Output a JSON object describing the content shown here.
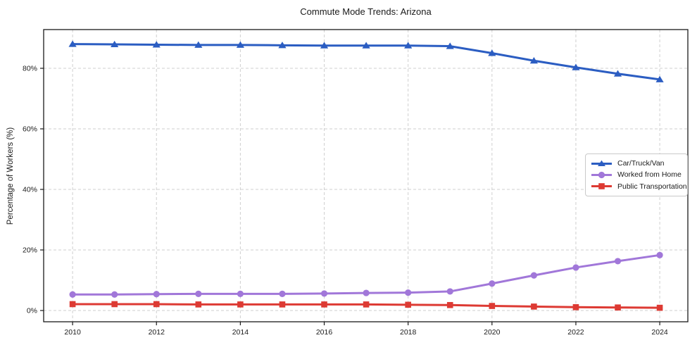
{
  "title": "Commute Mode Trends: Arizona",
  "chart_data": {
    "type": "line",
    "title": "Commute Mode Trends: Arizona",
    "xlabel": "",
    "ylabel": "Percentage of Workers (%)",
    "x": [
      2010,
      2011,
      2012,
      2013,
      2014,
      2015,
      2016,
      2017,
      2018,
      2019,
      2020,
      2021,
      2022,
      2023,
      2024
    ],
    "series": [
      {
        "name": "Car/Truck/Van",
        "color": "#2b5dc2",
        "marker": "triangle",
        "values": [
          88.0,
          87.9,
          87.8,
          87.7,
          87.7,
          87.6,
          87.5,
          87.5,
          87.5,
          87.3,
          85.0,
          82.5,
          80.3,
          78.2,
          76.3
        ]
      },
      {
        "name": "Worked from Home",
        "color": "#a177d9",
        "marker": "circle",
        "values": [
          5.3,
          5.3,
          5.4,
          5.5,
          5.5,
          5.5,
          5.6,
          5.8,
          5.9,
          6.3,
          8.9,
          11.6,
          14.2,
          16.3,
          18.3
        ]
      },
      {
        "name": "Public Transportation",
        "color": "#dd3a33",
        "marker": "square",
        "values": [
          2.1,
          2.1,
          2.1,
          2.0,
          2.0,
          2.0,
          2.0,
          2.0,
          1.9,
          1.8,
          1.5,
          1.3,
          1.1,
          1.0,
          0.9
        ]
      }
    ],
    "x_tick_labels": [
      "2010",
      "2012",
      "2014",
      "2016",
      "2018",
      "2020",
      "2022",
      "2024"
    ],
    "x_tick_values": [
      2010,
      2012,
      2014,
      2016,
      2018,
      2020,
      2022,
      2024
    ],
    "y_tick_labels": [
      "0%",
      "20%",
      "40%",
      "60%",
      "80%"
    ],
    "y_tick_values": [
      0,
      20,
      40,
      60,
      80
    ],
    "xlim": [
      2009.31,
      2024.67
    ],
    "ylim": [
      -3.72,
      92.79
    ],
    "grid": true,
    "grid_style": "dashed",
    "grid_color": "#cfcfcf",
    "axis_color": "#1a1a1a",
    "legend_position": "center-right"
  }
}
